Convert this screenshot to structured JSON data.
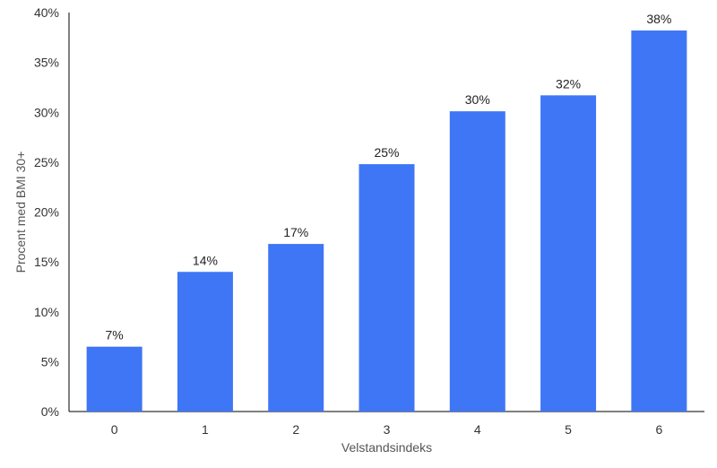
{
  "chart_data": {
    "type": "bar",
    "categories": [
      "0",
      "1",
      "2",
      "3",
      "4",
      "5",
      "6"
    ],
    "values": [
      6.5,
      14,
      16.8,
      24.8,
      30.1,
      31.7,
      38.2
    ],
    "data_labels": [
      "7%",
      "14%",
      "17%",
      "25%",
      "30%",
      "32%",
      "38%"
    ],
    "xlabel": "Velstandsindeks",
    "ylabel": "Procent med BMI 30+",
    "ylim": [
      0,
      40
    ],
    "yticks": [
      0,
      5,
      10,
      15,
      20,
      25,
      30,
      35,
      40
    ],
    "ytick_labels": [
      "0%",
      "5%",
      "10%",
      "15%",
      "20%",
      "25%",
      "30%",
      "35%",
      "40%"
    ],
    "grid": false,
    "bar_color": "#3f76f6"
  }
}
